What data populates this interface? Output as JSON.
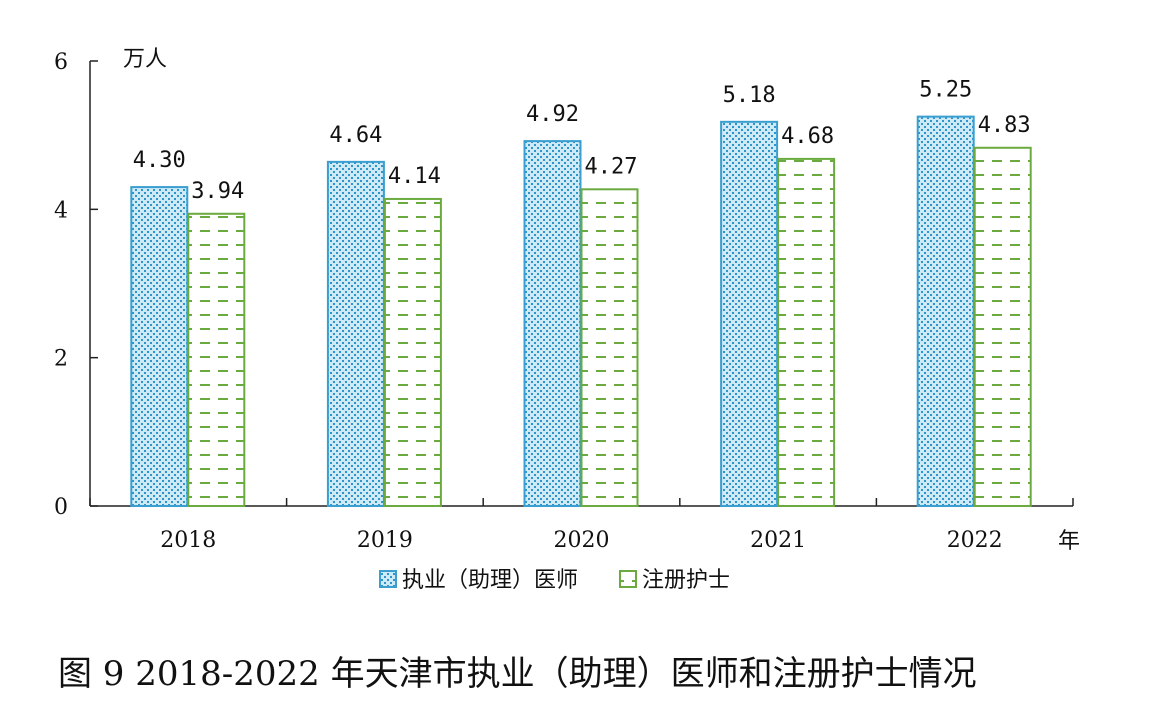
{
  "chart_data": {
    "type": "bar",
    "categories": [
      "2018",
      "2019",
      "2020",
      "2021",
      "2022"
    ],
    "series": [
      {
        "name": "执业（助理）医师",
        "values": [
          4.3,
          4.64,
          4.92,
          5.18,
          5.25
        ],
        "labels": [
          "4.30",
          "4.64",
          "4.92",
          "5.18",
          "5.25"
        ],
        "color": "#3a9fd0"
      },
      {
        "name": "注册护士",
        "values": [
          3.94,
          4.14,
          4.27,
          4.68,
          4.83
        ],
        "labels": [
          "3.94",
          "4.14",
          "4.27",
          "4.68",
          "4.83"
        ],
        "color": "#6aaa3e"
      }
    ],
    "ylim": [
      0,
      6
    ],
    "yticks": [
      "0",
      "2",
      "4",
      "6"
    ],
    "ylabel": "万人",
    "xlabel": "年",
    "legend_position": "bottom"
  },
  "caption": "图 9 2018-2022 年天津市执业（助理）医师和注册护士情况"
}
